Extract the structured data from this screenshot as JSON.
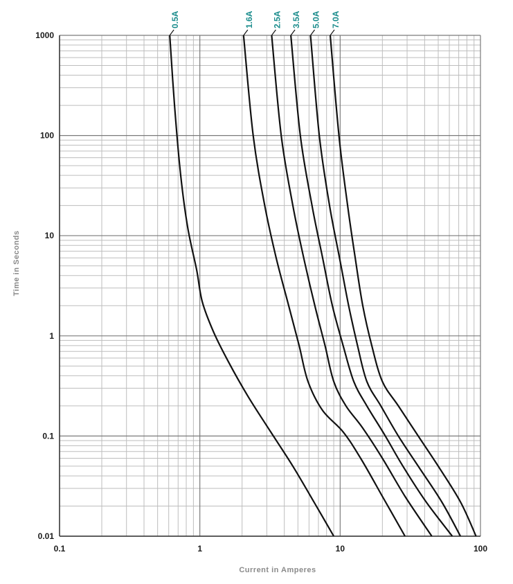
{
  "chart_data": {
    "type": "line",
    "xscale": "log",
    "yscale": "log",
    "xlim": [
      0.1,
      100
    ],
    "ylim": [
      0.01,
      1000
    ],
    "grid": true,
    "xlabel": "Current in Amperes",
    "ylabel": "Time in Seconds",
    "xticks": [
      "0.1",
      "1",
      "10",
      "100"
    ],
    "yticks": [
      "0.01",
      "0.1",
      "1",
      "10",
      "100",
      "1000"
    ],
    "colors": {
      "curve": "#111111",
      "label": "#1a8c8c",
      "grid_major": "#7a7a7a",
      "grid_minor": "#bdbdbd"
    },
    "series": [
      {
        "name": "0.5A",
        "x": [
          0.61,
          0.66,
          0.73,
          0.82,
          0.95,
          1.04,
          1.25,
          1.6,
          2.2,
          3.2,
          4.6,
          6.5,
          9.0
        ],
        "y": [
          1000,
          200,
          40,
          12,
          4.5,
          2.2,
          1.1,
          0.55,
          0.25,
          0.11,
          0.05,
          0.022,
          0.01
        ]
      },
      {
        "name": "1.6A",
        "x": [
          2.05,
          2.4,
          2.9,
          3.5,
          4.3,
          5.1,
          5.9,
          7.5,
          10.5,
          14,
          20,
          29
        ],
        "y": [
          1000,
          100,
          20,
          6,
          2.0,
          0.8,
          0.35,
          0.18,
          0.11,
          0.06,
          0.025,
          0.01
        ]
      },
      {
        "name": "2.5A",
        "x": [
          3.25,
          3.8,
          4.6,
          5.5,
          6.6,
          7.8,
          9.0,
          11,
          14.5,
          20,
          29,
          45
        ],
        "y": [
          1000,
          100,
          20,
          6,
          2.0,
          0.8,
          0.35,
          0.2,
          0.12,
          0.06,
          0.025,
          0.01
        ]
      },
      {
        "name": "3.5A",
        "x": [
          4.45,
          5.2,
          6.3,
          7.5,
          8.8,
          10.5,
          12.5,
          15.5,
          21,
          28,
          41,
          63
        ],
        "y": [
          1000,
          100,
          20,
          6,
          2.0,
          0.8,
          0.35,
          0.2,
          0.1,
          0.05,
          0.022,
          0.01
        ]
      },
      {
        "name": "5.0A",
        "x": [
          6.15,
          7.1,
          8.4,
          9.9,
          11.5,
          13.3,
          15.5,
          19.5,
          26,
          36,
          53,
          72
        ],
        "y": [
          1000,
          100,
          20,
          6,
          2.0,
          0.8,
          0.35,
          0.2,
          0.1,
          0.05,
          0.022,
          0.01
        ]
      },
      {
        "name": "7.0A",
        "x": [
          8.5,
          9.8,
          11.3,
          12.8,
          14.5,
          16.8,
          20,
          26,
          36,
          50,
          72,
          93
        ],
        "y": [
          1000,
          100,
          20,
          6,
          2.0,
          0.8,
          0.35,
          0.2,
          0.1,
          0.05,
          0.022,
          0.01
        ]
      }
    ]
  }
}
